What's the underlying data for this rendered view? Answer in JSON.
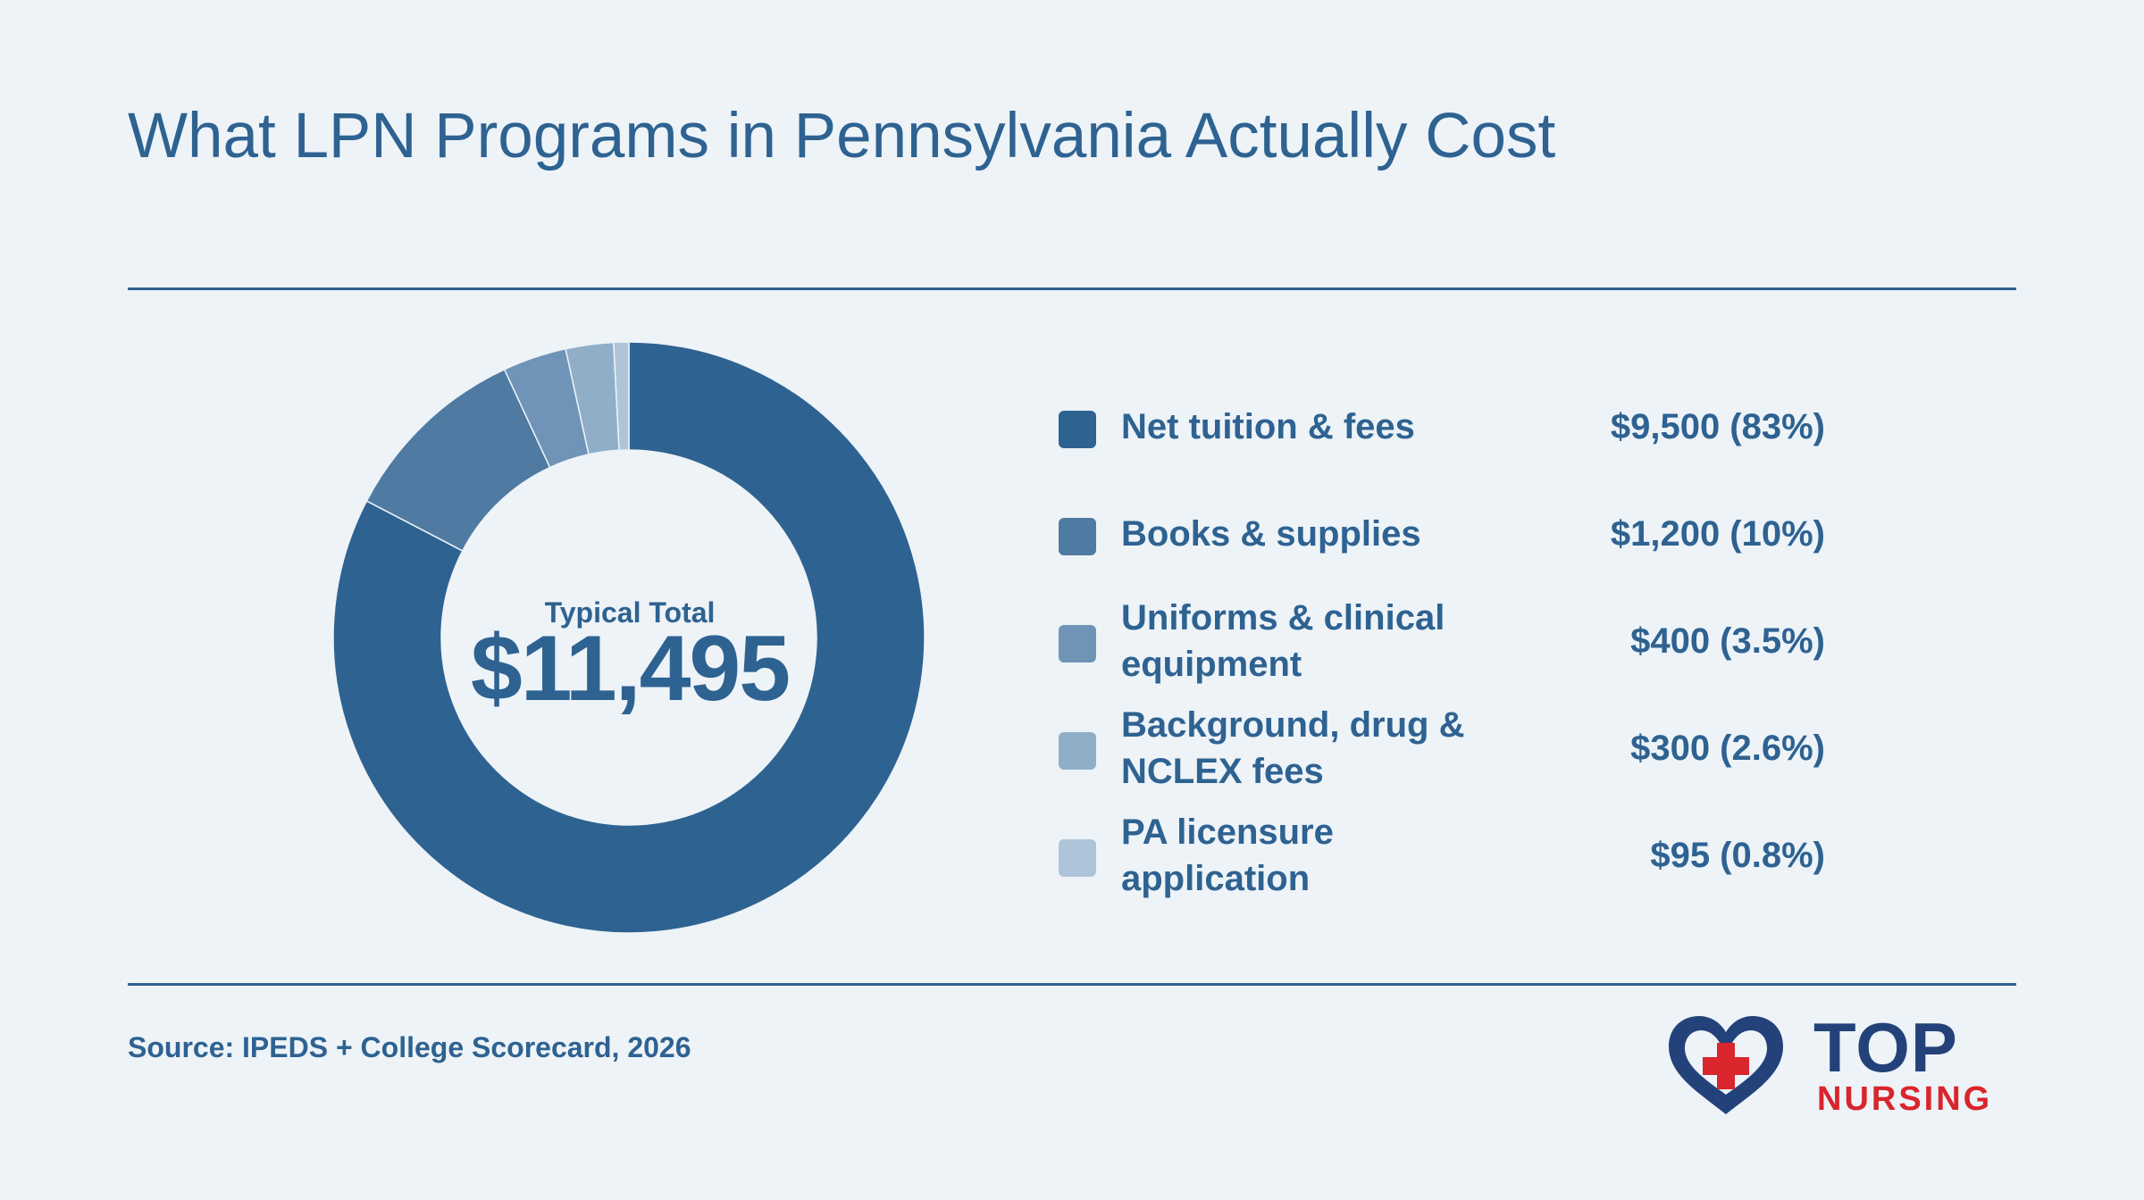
{
  "page": {
    "title": "What LPN Programs in Pennsylvania Actually Cost",
    "source": "Source: IPEDS + College Scorecard, 2026"
  },
  "logo": {
    "line1": "TOP",
    "line2": "NURSING",
    "colors": {
      "heart": "#24427a",
      "cross": "#d9252c"
    }
  },
  "chart_data": {
    "type": "pie",
    "style": "donut",
    "center_caption": "Typical Total",
    "center_value": "$11,495",
    "total": 11495,
    "slices": [
      {
        "label": "Net tuition & fees",
        "value": 9500,
        "percent": 83,
        "display": "$9,500 (83%)",
        "color": "#2e6291"
      },
      {
        "label": "Books & supplies",
        "value": 1200,
        "percent": 10,
        "display": "$1,200 (10%)",
        "color": "#4f7aa2"
      },
      {
        "label": "Uniforms & clinical equipment",
        "value": 400,
        "percent": 3.5,
        "display": "$400 (3.5%)",
        "color": "#7094b7"
      },
      {
        "label": "Background, drug & NCLEX fees",
        "value": 300,
        "percent": 2.6,
        "display": "$300 (2.6%)",
        "color": "#90aec8"
      },
      {
        "label": "PA licensure application",
        "value": 95,
        "percent": 0.8,
        "display": "$95 (0.8%)",
        "color": "#aec5d9"
      }
    ],
    "legend_position": "right"
  }
}
